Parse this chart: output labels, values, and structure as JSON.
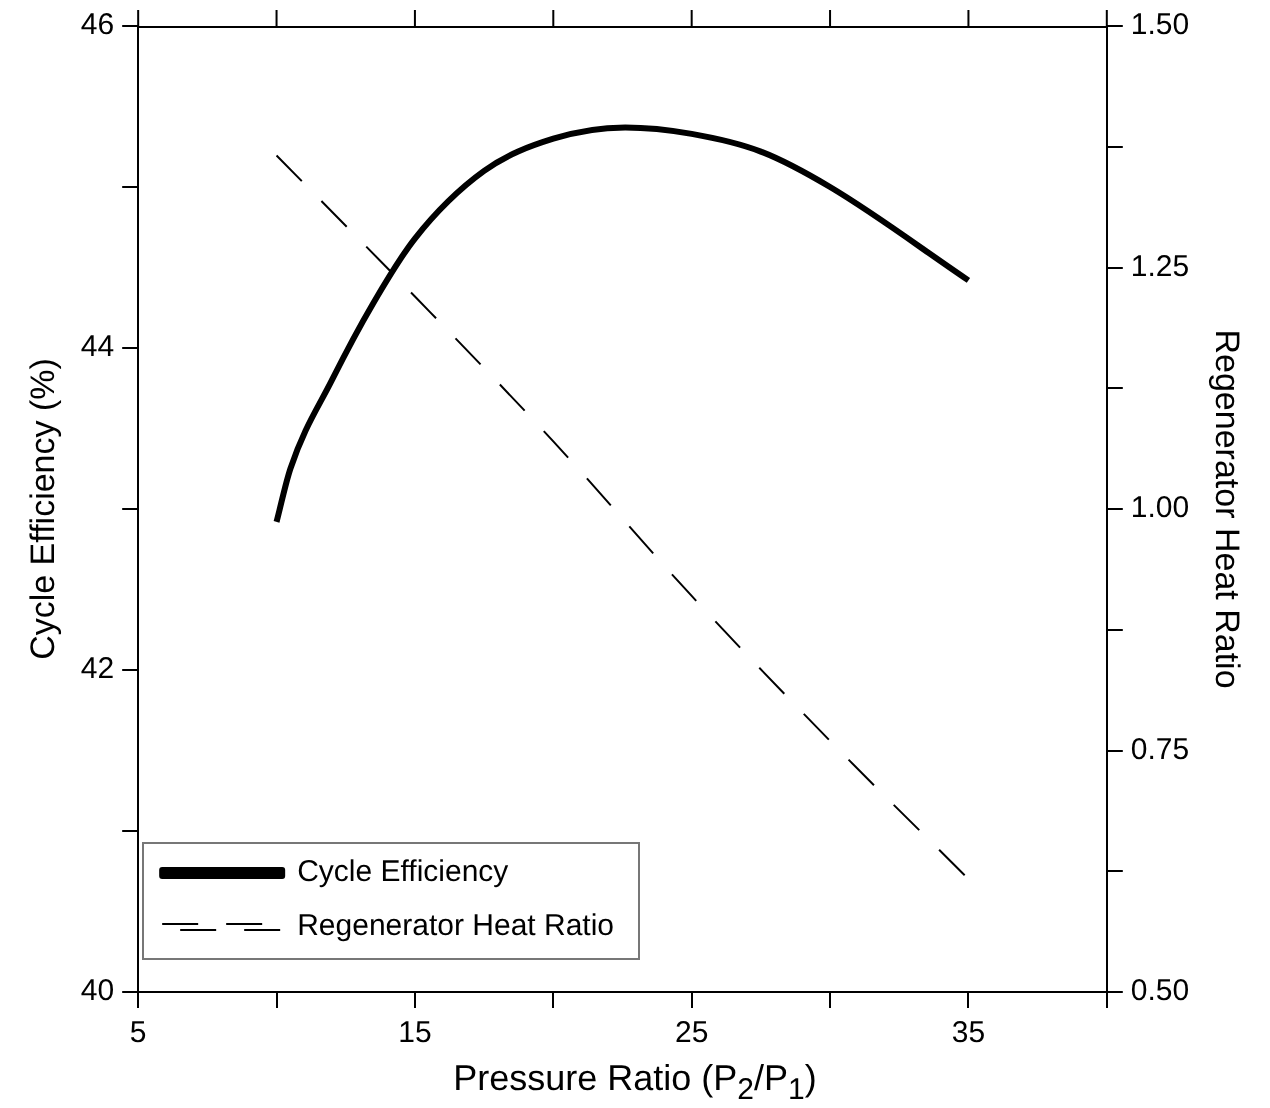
{
  "chart_data": {
    "type": "line",
    "xlabel": "Pressure Ratio (P$_{2}$/P$_{1}$)",
    "ylabel": "Cycle Efficiency (%)",
    "y2label": "Regenerator Heat Ratio",
    "x": [
      10,
      10.5,
      12,
      13.5,
      15,
      17.5,
      20,
      22.6,
      25,
      27.5,
      30,
      35
    ],
    "series": [
      {
        "name": "Cycle Efficiency",
        "color": "#000000",
        "line_style": "solid",
        "values": [
          42.92,
          43.25,
          43.8,
          44.28,
          44.68,
          45.1,
          45.3,
          45.37,
          45.33,
          45.22,
          45.0,
          44.42
        ]
      },
      {
        "name": "Regenerator Heat Ratio",
        "color": "#000000",
        "line_style": "dashed",
        "axis": "y2",
        "x": [
          10,
          15,
          20,
          25,
          30,
          35
        ],
        "values": [
          1.366,
          1.22,
          1.07,
          0.91,
          0.76,
          0.617
        ]
      }
    ],
    "xlim": [
      5,
      40
    ],
    "xticks": [
      5,
      {
        "value": 10,
        "label": null
      },
      15,
      {
        "value": 20,
        "label": null
      },
      25,
      {
        "value": 30,
        "label": null
      },
      35,
      {
        "value": 40,
        "label": null
      }
    ],
    "ylim": [
      40,
      46
    ],
    "yticks": [
      40,
      {
        "value": 41,
        "label": null
      },
      42,
      {
        "value": 43,
        "label": null
      },
      44,
      {
        "value": 45,
        "label": null
      },
      46
    ],
    "y2lim": [
      0.5,
      1.5
    ],
    "y2ticks": [
      {
        "value": 0.5,
        "label": "0.50"
      },
      {
        "value": 0.625,
        "label": null
      },
      {
        "value": 0.75,
        "label": "0.75"
      },
      {
        "value": 0.875,
        "label": null
      },
      {
        "value": 1.0,
        "label": "1.00"
      },
      {
        "value": 1.125,
        "label": null
      },
      {
        "value": 1.25,
        "label": "1.25"
      },
      {
        "value": 1.375,
        "label": null
      },
      {
        "value": 1.5,
        "label": "1.50"
      }
    ],
    "grid": false,
    "legend": "bottom left",
    "marker": "none"
  }
}
